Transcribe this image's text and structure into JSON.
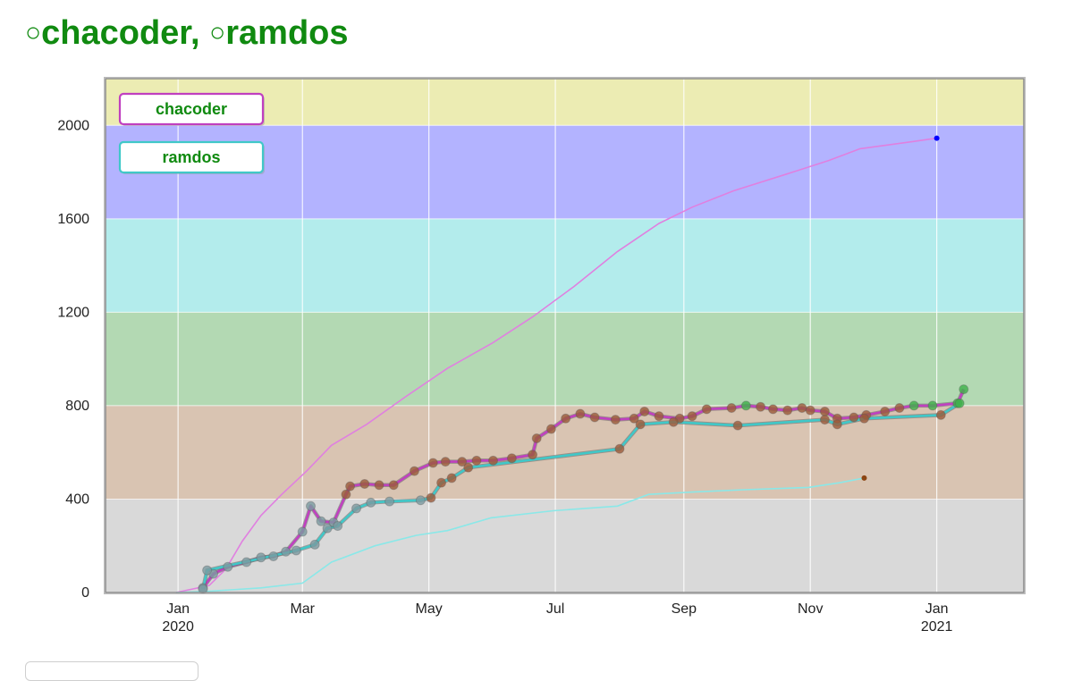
{
  "header": {
    "user1": "chacoder",
    "separator": ",",
    "user2": "ramdos",
    "circle_glyph": "○"
  },
  "chart_data": {
    "type": "line",
    "title": "",
    "xlabel": "",
    "ylabel": "",
    "ylim": [
      0,
      2200
    ],
    "yticks": [
      0,
      400,
      800,
      1200,
      1600,
      2000
    ],
    "xlim": [
      "2019-11-27",
      "2021-02-12"
    ],
    "xticks": [
      {
        "date": "2020-01-01",
        "label": "Jan",
        "sub": "2020"
      },
      {
        "date": "2020-03-01",
        "label": "Mar",
        "sub": ""
      },
      {
        "date": "2020-05-01",
        "label": "May",
        "sub": ""
      },
      {
        "date": "2020-07-01",
        "label": "Jul",
        "sub": ""
      },
      {
        "date": "2020-09-01",
        "label": "Sep",
        "sub": ""
      },
      {
        "date": "2020-11-01",
        "label": "Nov",
        "sub": ""
      },
      {
        "date": "2021-01-01",
        "label": "Jan",
        "sub": "2021"
      }
    ],
    "bands": [
      {
        "from": 0,
        "to": 400,
        "color": "#d9d9d9"
      },
      {
        "from": 400,
        "to": 800,
        "color": "#d9c4b2"
      },
      {
        "from": 800,
        "to": 1200,
        "color": "#b3d9b3"
      },
      {
        "from": 1200,
        "to": 1600,
        "color": "#b3ecec"
      },
      {
        "from": 1600,
        "to": 2000,
        "color": "#b3b3ff"
      },
      {
        "from": 2000,
        "to": 2200,
        "color": "#ececb3"
      }
    ],
    "legend": {
      "position": "top-left",
      "entries": [
        "chacoder",
        "ramdos"
      ]
    },
    "series": [
      {
        "name": "chacoder",
        "kind": "rating",
        "color": "#c040c0",
        "points": [
          [
            "2020-01-13",
            20
          ],
          [
            "2020-01-18",
            80
          ],
          [
            "2020-01-25",
            110
          ],
          [
            "2020-02-03",
            130
          ],
          [
            "2020-02-10",
            150
          ],
          [
            "2020-02-16",
            155
          ],
          [
            "2020-02-22",
            175
          ],
          [
            "2020-03-01",
            260
          ],
          [
            "2020-03-05",
            370
          ],
          [
            "2020-03-10",
            305
          ],
          [
            "2020-03-16",
            300
          ],
          [
            "2020-03-22",
            420
          ],
          [
            "2020-03-24",
            455
          ],
          [
            "2020-03-31",
            465
          ],
          [
            "2020-04-07",
            460
          ],
          [
            "2020-04-14",
            460
          ],
          [
            "2020-04-24",
            520
          ],
          [
            "2020-05-03",
            555
          ],
          [
            "2020-05-09",
            560
          ],
          [
            "2020-05-17",
            560
          ],
          [
            "2020-05-24",
            565
          ],
          [
            "2020-06-01",
            565
          ],
          [
            "2020-06-10",
            575
          ],
          [
            "2020-06-20",
            590
          ],
          [
            "2020-06-22",
            660
          ],
          [
            "2020-06-29",
            700
          ],
          [
            "2020-07-06",
            745
          ],
          [
            "2020-07-13",
            765
          ],
          [
            "2020-07-20",
            750
          ],
          [
            "2020-07-30",
            740
          ],
          [
            "2020-08-08",
            745
          ],
          [
            "2020-08-13",
            775
          ],
          [
            "2020-08-20",
            755
          ],
          [
            "2020-08-30",
            745
          ],
          [
            "2020-09-05",
            755
          ],
          [
            "2020-09-12",
            785
          ],
          [
            "2020-09-24",
            790
          ],
          [
            "2020-10-01",
            800
          ],
          [
            "2020-10-08",
            795
          ],
          [
            "2020-10-14",
            785
          ],
          [
            "2020-10-21",
            780
          ],
          [
            "2020-10-28",
            790
          ],
          [
            "2020-11-01",
            780
          ],
          [
            "2020-11-08",
            775
          ],
          [
            "2020-11-14",
            745
          ],
          [
            "2020-11-22",
            750
          ],
          [
            "2020-11-28",
            760
          ],
          [
            "2020-12-07",
            775
          ],
          [
            "2020-12-14",
            790
          ],
          [
            "2020-12-21",
            800
          ],
          [
            "2020-12-30",
            800
          ],
          [
            "2021-01-11",
            810
          ],
          [
            "2021-01-14",
            870
          ]
        ]
      },
      {
        "name": "ramdos",
        "kind": "rating",
        "color": "#40c8c8",
        "points": [
          [
            "2020-01-13",
            15
          ],
          [
            "2020-01-15",
            95
          ],
          [
            "2020-02-27",
            180
          ],
          [
            "2020-03-07",
            205
          ],
          [
            "2020-03-13",
            275
          ],
          [
            "2020-03-18",
            285
          ],
          [
            "2020-03-27",
            360
          ],
          [
            "2020-04-03",
            385
          ],
          [
            "2020-04-12",
            390
          ],
          [
            "2020-04-27",
            395
          ],
          [
            "2020-05-02",
            405
          ],
          [
            "2020-05-07",
            470
          ],
          [
            "2020-05-12",
            490
          ],
          [
            "2020-05-20",
            535
          ],
          [
            "2020-08-01",
            615
          ],
          [
            "2020-08-11",
            720
          ],
          [
            "2020-08-27",
            730
          ],
          [
            "2020-09-27",
            715
          ],
          [
            "2020-11-08",
            740
          ],
          [
            "2020-11-14",
            720
          ],
          [
            "2020-11-27",
            745
          ],
          [
            "2021-01-03",
            760
          ],
          [
            "2021-01-12",
            810
          ]
        ]
      },
      {
        "name": "chacoder",
        "kind": "problems",
        "color": "#e080e0",
        "end_color": "#0000ff",
        "points": [
          [
            "2019-12-31",
            0
          ],
          [
            "2020-01-16",
            30
          ],
          [
            "2020-01-24",
            100
          ],
          [
            "2020-02-01",
            220
          ],
          [
            "2020-02-10",
            330
          ],
          [
            "2020-02-20",
            420
          ],
          [
            "2020-03-03",
            520
          ],
          [
            "2020-03-15",
            630
          ],
          [
            "2020-04-01",
            720
          ],
          [
            "2020-04-20",
            840
          ],
          [
            "2020-05-10",
            960
          ],
          [
            "2020-06-01",
            1070
          ],
          [
            "2020-06-20",
            1180
          ],
          [
            "2020-07-10",
            1310
          ],
          [
            "2020-07-31",
            1460
          ],
          [
            "2020-08-20",
            1580
          ],
          [
            "2020-09-05",
            1650
          ],
          [
            "2020-09-25",
            1720
          ],
          [
            "2020-10-20",
            1790
          ],
          [
            "2020-11-10",
            1850
          ],
          [
            "2020-11-25",
            1900
          ],
          [
            "2020-12-20",
            1930
          ],
          [
            "2021-01-01",
            1945
          ]
        ]
      },
      {
        "name": "ramdos",
        "kind": "problems",
        "color": "#8ae8e8",
        "end_color": "#8b4513",
        "points": [
          [
            "2019-12-31",
            0
          ],
          [
            "2020-01-15",
            5
          ],
          [
            "2020-02-10",
            20
          ],
          [
            "2020-03-01",
            40
          ],
          [
            "2020-03-15",
            130
          ],
          [
            "2020-04-05",
            200
          ],
          [
            "2020-04-25",
            245
          ],
          [
            "2020-05-10",
            265
          ],
          [
            "2020-05-31",
            320
          ],
          [
            "2020-06-30",
            350
          ],
          [
            "2020-07-31",
            370
          ],
          [
            "2020-08-15",
            420
          ],
          [
            "2020-09-05",
            430
          ],
          [
            "2020-09-30",
            440
          ],
          [
            "2020-10-31",
            450
          ],
          [
            "2020-11-15",
            470
          ],
          [
            "2020-11-27",
            490
          ]
        ]
      }
    ]
  },
  "colors": {
    "title_green": "#108a10",
    "legend_border_chacoder": "#c040c0",
    "legend_border_ramdos": "#40c8c8",
    "ramdos_marker_green": "#3fb04a",
    "chacoder_marker_brown": "#9b5a3a",
    "ramdos_marker_gray": "#7a9aa0"
  }
}
